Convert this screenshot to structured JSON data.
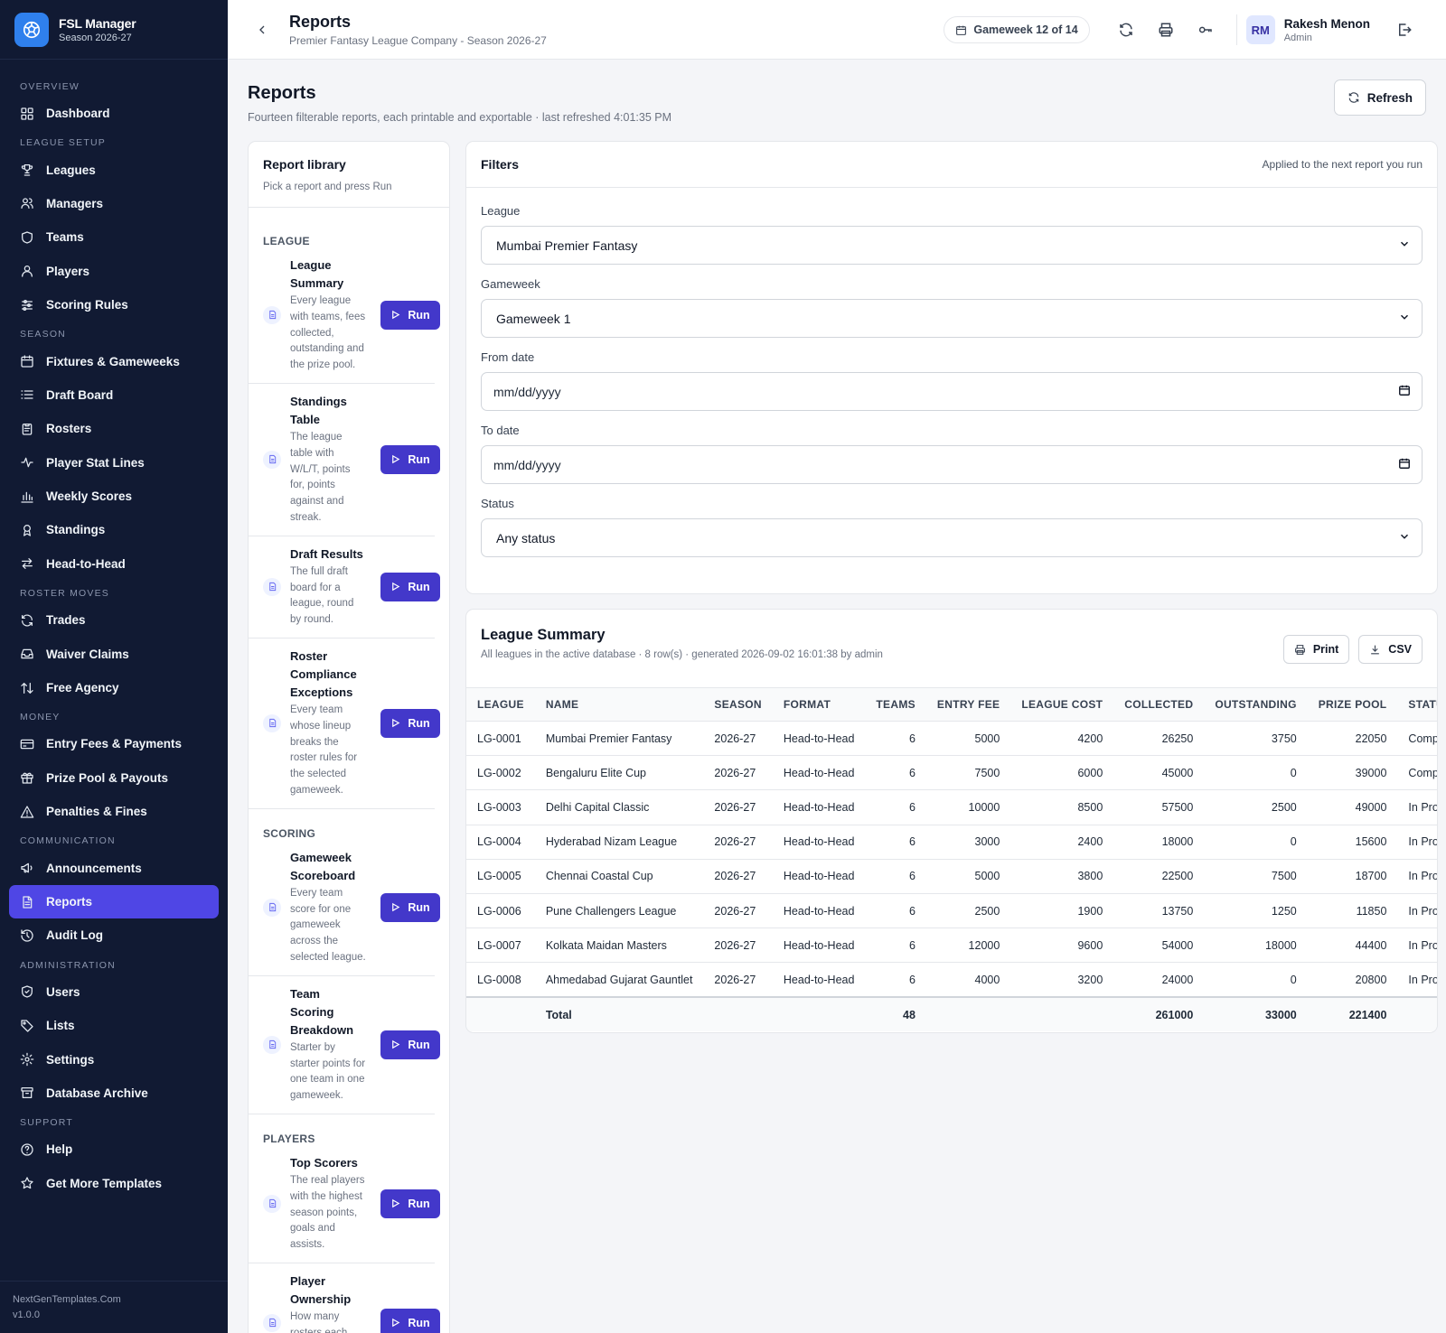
{
  "brand": {
    "title": "FSL Manager",
    "subtitle": "Season 2026-27"
  },
  "nav": {
    "sections": [
      {
        "label": "OVERVIEW",
        "items": [
          {
            "label": "Dashboard",
            "icon": "grid-icon"
          }
        ]
      },
      {
        "label": "LEAGUE SETUP",
        "items": [
          {
            "label": "Leagues",
            "icon": "trophy-icon"
          },
          {
            "label": "Managers",
            "icon": "users-icon"
          },
          {
            "label": "Teams",
            "icon": "shield-icon"
          },
          {
            "label": "Players",
            "icon": "user-icon"
          },
          {
            "label": "Scoring Rules",
            "icon": "sliders-icon"
          }
        ]
      },
      {
        "label": "SEASON",
        "items": [
          {
            "label": "Fixtures & Gameweeks",
            "icon": "calendar-icon"
          },
          {
            "label": "Draft Board",
            "icon": "list-icon"
          },
          {
            "label": "Rosters",
            "icon": "clipboard-icon"
          },
          {
            "label": "Player Stat Lines",
            "icon": "activity-icon"
          },
          {
            "label": "Weekly Scores",
            "icon": "bar-chart-icon"
          },
          {
            "label": "Standings",
            "icon": "award-icon"
          },
          {
            "label": "Head-to-Head",
            "icon": "swap-icon"
          }
        ]
      },
      {
        "label": "ROSTER MOVES",
        "items": [
          {
            "label": "Trades",
            "icon": "refresh-icon"
          },
          {
            "label": "Waiver Claims",
            "icon": "inbox-icon"
          },
          {
            "label": "Free Agency",
            "icon": "arrows-updown-icon"
          }
        ]
      },
      {
        "label": "MONEY",
        "items": [
          {
            "label": "Entry Fees & Payments",
            "icon": "credit-card-icon"
          },
          {
            "label": "Prize Pool & Payouts",
            "icon": "gift-icon"
          },
          {
            "label": "Penalties & Fines",
            "icon": "alert-triangle-icon"
          }
        ]
      },
      {
        "label": "COMMUNICATION",
        "items": [
          {
            "label": "Announcements",
            "icon": "megaphone-icon"
          },
          {
            "label": "Reports",
            "icon": "file-text-icon",
            "active": true
          },
          {
            "label": "Audit Log",
            "icon": "history-icon"
          }
        ]
      },
      {
        "label": "ADMINISTRATION",
        "items": [
          {
            "label": "Users",
            "icon": "shield-check-icon"
          },
          {
            "label": "Lists",
            "icon": "tag-icon"
          },
          {
            "label": "Settings",
            "icon": "gear-icon"
          },
          {
            "label": "Database Archive",
            "icon": "archive-icon"
          }
        ]
      },
      {
        "label": "SUPPORT",
        "items": [
          {
            "label": "Help",
            "icon": "help-circle-icon"
          },
          {
            "label": "Get More Templates",
            "icon": "star-icon"
          }
        ]
      }
    ]
  },
  "footer": {
    "site": "NextGenTemplates.Com",
    "version": "v1.0.0"
  },
  "header": {
    "title": "Reports",
    "subtitle": "Premier Fantasy League Company - Season 2026-27",
    "gameweek": "Gameweek 12 of 14",
    "user_initials": "RM",
    "user_name": "Rakesh Menon",
    "user_role": "Admin"
  },
  "page": {
    "title": "Reports",
    "subtitle": "Fourteen filterable reports, each printable and exportable · last refreshed 4:01:35 PM",
    "refresh_label": "Refresh"
  },
  "library": {
    "title": "Report library",
    "subtitle": "Pick a report and press Run",
    "run_label": "Run",
    "categories": [
      {
        "label": "LEAGUE",
        "reports": [
          {
            "name": "League Summary",
            "desc": "Every league with teams, fees collected, outstanding and the prize pool."
          },
          {
            "name": "Standings Table",
            "desc": "The league table with W/L/T, points for, points against and streak."
          },
          {
            "name": "Draft Results",
            "desc": "The full draft board for a league, round by round."
          },
          {
            "name": "Roster Compliance Exceptions",
            "desc": "Every team whose lineup breaks the roster rules for the selected gameweek."
          }
        ]
      },
      {
        "label": "SCORING",
        "reports": [
          {
            "name": "Gameweek Scoreboard",
            "desc": "Every team score for one gameweek across the selected league."
          },
          {
            "name": "Team Scoring Breakdown",
            "desc": "Starter by starter points for one team in one gameweek."
          }
        ]
      },
      {
        "label": "PLAYERS",
        "reports": [
          {
            "name": "Top Scorers",
            "desc": "The real players with the highest season points, goals and assists."
          },
          {
            "name": "Player Ownership",
            "desc": "How many rosters each real player appears"
          }
        ]
      }
    ]
  },
  "filters": {
    "title": "Filters",
    "note": "Applied to the next report you run",
    "league_label": "League",
    "league_value": "Mumbai Premier Fantasy",
    "gameweek_label": "Gameweek",
    "gameweek_value": "Gameweek 1",
    "from_label": "From date",
    "from_value": "mm/dd/yyyy",
    "to_label": "To date",
    "to_value": "mm/dd/yyyy",
    "status_label": "Status",
    "status_value": "Any status"
  },
  "results": {
    "title": "League Summary",
    "subtitle": "All leagues in the active database · 8 row(s) · generated 2026-09-02 16:01:38 by admin",
    "print_label": "Print",
    "csv_label": "CSV",
    "columns": [
      "LEAGUE",
      "NAME",
      "SEASON",
      "FORMAT",
      "TEAMS",
      "ENTRY FEE",
      "LEAGUE COST",
      "COLLECTED",
      "OUTSTANDING",
      "PRIZE POOL",
      "STATUS"
    ],
    "rows": [
      [
        "LG-0001",
        "Mumbai Premier Fantasy",
        "2026-27",
        "Head-to-Head",
        "6",
        "5000",
        "4200",
        "26250",
        "3750",
        "22050",
        "Completed"
      ],
      [
        "LG-0002",
        "Bengaluru Elite Cup",
        "2026-27",
        "Head-to-Head",
        "6",
        "7500",
        "6000",
        "45000",
        "0",
        "39000",
        "Completed"
      ],
      [
        "LG-0003",
        "Delhi Capital Classic",
        "2026-27",
        "Head-to-Head",
        "6",
        "10000",
        "8500",
        "57500",
        "2500",
        "49000",
        "In Progress"
      ],
      [
        "LG-0004",
        "Hyderabad Nizam League",
        "2026-27",
        "Head-to-Head",
        "6",
        "3000",
        "2400",
        "18000",
        "0",
        "15600",
        "In Progress"
      ],
      [
        "LG-0005",
        "Chennai Coastal Cup",
        "2026-27",
        "Head-to-Head",
        "6",
        "5000",
        "3800",
        "22500",
        "7500",
        "18700",
        "In Progress"
      ],
      [
        "LG-0006",
        "Pune Challengers League",
        "2026-27",
        "Head-to-Head",
        "6",
        "2500",
        "1900",
        "13750",
        "1250",
        "11850",
        "In Progress"
      ],
      [
        "LG-0007",
        "Kolkata Maidan Masters",
        "2026-27",
        "Head-to-Head",
        "6",
        "12000",
        "9600",
        "54000",
        "18000",
        "44400",
        "In Progress"
      ],
      [
        "LG-0008",
        "Ahmedabad Gujarat Gauntlet",
        "2026-27",
        "Head-to-Head",
        "6",
        "4000",
        "3200",
        "24000",
        "0",
        "20800",
        "In Progress"
      ]
    ],
    "totals": [
      "",
      "Total",
      "",
      "",
      "48",
      "",
      "",
      "261000",
      "33000",
      "221400",
      ""
    ]
  },
  "colors": {
    "sidebar_bg": "#111a33",
    "accent": "#4f46e5",
    "run_button": "#4338ca",
    "brand_logo": "#2f80ed"
  }
}
